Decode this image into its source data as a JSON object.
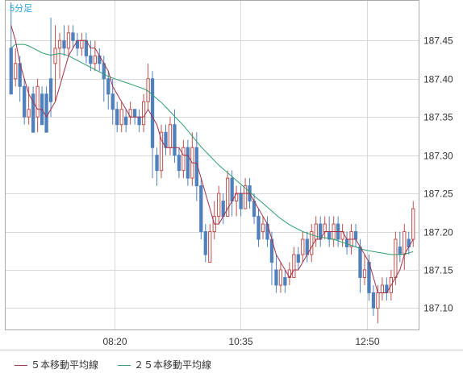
{
  "chart_data": {
    "type": "candlestick",
    "title": "5分足",
    "x_tick_labels": [
      "08:20",
      "10:35",
      "12:50"
    ],
    "y_tick_labels": [
      "187.45",
      "187.40",
      "187.35",
      "187.30",
      "187.25",
      "187.20",
      "187.15",
      "187.10"
    ],
    "ylim": [
      187.072,
      187.502
    ],
    "grid": true,
    "legend_position": "bottom-left",
    "colors": {
      "up": "#c0504d",
      "down": "#4f81bd",
      "ma5": "#a0324b",
      "ma25": "#2e9e6e",
      "title": "#29a3d6",
      "grid": "#d9d9d9"
    },
    "legend": [
      {
        "name": "５本移動平均線",
        "color": "#a0324b"
      },
      {
        "name": "２５本移動平均線",
        "color": "#2e9e6e"
      }
    ],
    "candles": [
      [
        187.44,
        187.38,
        187.5,
        187.38
      ],
      [
        187.4,
        187.42,
        187.44,
        187.39
      ],
      [
        187.42,
        187.39,
        187.43,
        187.37
      ],
      [
        187.39,
        187.35,
        187.4,
        187.34
      ],
      [
        187.35,
        187.36,
        187.39,
        187.34
      ],
      [
        187.38,
        187.33,
        187.39,
        187.33
      ],
      [
        187.35,
        187.39,
        187.4,
        187.33
      ],
      [
        187.38,
        187.34,
        187.39,
        187.34
      ],
      [
        187.38,
        187.33,
        187.39,
        187.33
      ],
      [
        187.4,
        187.37,
        187.48,
        187.35
      ],
      [
        187.42,
        187.44,
        187.47,
        187.37
      ],
      [
        187.44,
        187.45,
        187.46,
        187.4
      ],
      [
        187.45,
        187.44,
        187.47,
        187.43
      ],
      [
        187.44,
        187.46,
        187.47,
        187.43
      ],
      [
        187.46,
        187.45,
        187.47,
        187.44
      ],
      [
        187.45,
        187.44,
        187.46,
        187.43
      ],
      [
        187.44,
        187.45,
        187.46,
        187.43
      ],
      [
        187.45,
        187.43,
        187.46,
        187.42
      ],
      [
        187.43,
        187.42,
        187.45,
        187.41
      ],
      [
        187.42,
        187.43,
        187.45,
        187.41
      ],
      [
        187.43,
        187.42,
        187.44,
        187.41
      ],
      [
        187.42,
        187.4,
        187.43,
        187.37
      ],
      [
        187.4,
        187.38,
        187.41,
        187.36
      ],
      [
        187.38,
        187.36,
        187.4,
        187.34
      ],
      [
        187.36,
        187.34,
        187.37,
        187.33
      ],
      [
        187.34,
        187.36,
        187.37,
        187.33
      ],
      [
        187.35,
        187.34,
        187.36,
        187.33
      ],
      [
        187.35,
        187.36,
        187.37,
        187.34
      ],
      [
        187.36,
        187.35,
        187.36,
        187.34
      ],
      [
        187.35,
        187.34,
        187.36,
        187.33
      ],
      [
        187.34,
        187.37,
        187.38,
        187.33
      ],
      [
        187.37,
        187.4,
        187.42,
        187.36
      ],
      [
        187.4,
        187.31,
        187.41,
        187.27
      ],
      [
        187.3,
        187.28,
        187.31,
        187.26
      ],
      [
        187.28,
        187.33,
        187.34,
        187.27
      ],
      [
        187.33,
        187.31,
        187.34,
        187.3
      ],
      [
        187.31,
        187.34,
        187.35,
        187.3
      ],
      [
        187.34,
        187.3,
        187.36,
        187.29
      ],
      [
        187.3,
        187.28,
        187.31,
        187.27
      ],
      [
        187.28,
        187.31,
        187.32,
        187.27
      ],
      [
        187.31,
        187.27,
        187.32,
        187.26
      ],
      [
        187.27,
        187.31,
        187.33,
        187.26
      ],
      [
        187.31,
        187.26,
        187.33,
        187.24
      ],
      [
        187.26,
        187.2,
        187.27,
        187.19
      ],
      [
        187.2,
        187.17,
        187.21,
        187.16
      ],
      [
        187.16,
        187.2,
        187.21,
        187.16
      ],
      [
        187.2,
        187.22,
        187.24,
        187.19
      ],
      [
        187.22,
        187.25,
        187.26,
        187.21
      ],
      [
        187.24,
        187.22,
        187.25,
        187.21
      ],
      [
        187.22,
        187.27,
        187.28,
        187.22
      ],
      [
        187.27,
        187.24,
        187.28,
        187.22
      ],
      [
        187.24,
        187.25,
        187.26,
        187.22
      ],
      [
        187.25,
        187.23,
        187.26,
        187.22
      ],
      [
        187.23,
        187.26,
        187.27,
        187.23
      ],
      [
        187.26,
        187.24,
        187.27,
        187.23
      ],
      [
        187.24,
        187.22,
        187.25,
        187.21
      ],
      [
        187.22,
        187.19,
        187.23,
        187.18
      ],
      [
        187.2,
        187.21,
        187.22,
        187.19
      ],
      [
        187.21,
        187.19,
        187.22,
        187.18
      ],
      [
        187.19,
        187.16,
        187.2,
        187.13
      ],
      [
        187.15,
        187.13,
        187.17,
        187.12
      ],
      [
        187.13,
        187.15,
        187.16,
        187.12
      ],
      [
        187.14,
        187.13,
        187.15,
        187.12
      ],
      [
        187.14,
        187.15,
        187.16,
        187.13
      ],
      [
        187.14,
        187.17,
        187.18,
        187.14
      ],
      [
        187.17,
        187.16,
        187.18,
        187.15
      ],
      [
        187.17,
        187.19,
        187.2,
        187.16
      ],
      [
        187.19,
        187.17,
        187.2,
        187.16
      ],
      [
        187.17,
        187.2,
        187.21,
        187.16
      ],
      [
        187.19,
        187.21,
        187.22,
        187.18
      ],
      [
        187.21,
        187.19,
        187.22,
        187.18
      ],
      [
        187.2,
        187.21,
        187.22,
        187.19
      ],
      [
        187.2,
        187.19,
        187.22,
        187.18
      ],
      [
        187.19,
        187.21,
        187.22,
        187.18
      ],
      [
        187.21,
        187.19,
        187.22,
        187.18
      ],
      [
        187.19,
        187.2,
        187.21,
        187.18
      ],
      [
        187.19,
        187.18,
        187.2,
        187.17
      ],
      [
        187.18,
        187.2,
        187.21,
        187.17
      ],
      [
        187.2,
        187.19,
        187.21,
        187.18
      ],
      [
        187.18,
        187.14,
        187.19,
        187.12
      ],
      [
        187.14,
        187.15,
        187.17,
        187.13
      ],
      [
        187.16,
        187.12,
        187.17,
        187.11
      ],
      [
        187.12,
        187.1,
        187.13,
        187.09
      ],
      [
        187.1,
        187.12,
        187.13,
        187.08
      ],
      [
        187.12,
        187.13,
        187.14,
        187.11
      ],
      [
        187.13,
        187.12,
        187.14,
        187.11
      ],
      [
        187.12,
        187.14,
        187.15,
        187.11
      ],
      [
        187.14,
        187.19,
        187.2,
        187.13
      ],
      [
        187.18,
        187.17,
        187.2,
        187.16
      ],
      [
        187.17,
        187.2,
        187.21,
        187.15
      ],
      [
        187.19,
        187.18,
        187.2,
        187.17
      ],
      [
        187.19,
        187.23,
        187.24,
        187.18
      ]
    ],
    "ma5": [
      187.47,
      187.45,
      187.42,
      187.4,
      187.38,
      187.37,
      187.36,
      187.36,
      187.35,
      187.36,
      187.37,
      187.39,
      187.41,
      187.43,
      187.44,
      187.45,
      187.45,
      187.45,
      187.44,
      187.44,
      187.43,
      187.42,
      187.41,
      187.39,
      187.38,
      187.37,
      187.36,
      187.35,
      187.35,
      187.35,
      187.35,
      187.36,
      187.35,
      187.34,
      187.32,
      187.31,
      187.31,
      187.31,
      187.31,
      187.3,
      187.3,
      187.29,
      187.29,
      187.27,
      187.25,
      187.23,
      187.21,
      187.21,
      187.22,
      187.23,
      187.24,
      187.25,
      187.25,
      187.25,
      187.25,
      187.24,
      187.23,
      187.22,
      187.21,
      187.19,
      187.17,
      187.16,
      187.15,
      187.14,
      187.15,
      187.15,
      187.16,
      187.17,
      187.18,
      187.19,
      187.19,
      187.2,
      187.2,
      187.2,
      187.2,
      187.2,
      187.19,
      187.19,
      187.19,
      187.18,
      187.17,
      187.16,
      187.14,
      187.12,
      187.12,
      187.12,
      187.13,
      187.14,
      187.15,
      187.17,
      187.18,
      187.19
    ],
    "ma25": [
      187.44,
      187.445,
      187.445,
      187.445,
      187.443,
      187.44,
      187.437,
      187.434,
      187.432,
      187.431,
      187.432,
      187.433,
      187.432,
      187.43,
      187.427,
      187.424,
      187.421,
      187.418,
      187.415,
      187.412,
      187.409,
      187.406,
      187.403,
      187.401,
      187.399,
      187.397,
      187.395,
      187.393,
      187.391,
      187.389,
      187.387,
      187.384,
      187.379,
      187.374,
      187.369,
      187.363,
      187.357,
      187.351,
      187.345,
      187.339,
      187.332,
      187.325,
      187.318,
      187.311,
      187.305,
      187.299,
      187.293,
      187.287,
      187.282,
      187.277,
      187.272,
      187.267,
      187.262,
      187.257,
      187.252,
      187.247,
      187.242,
      187.237,
      187.232,
      187.227,
      187.222,
      187.217,
      187.213,
      187.209,
      187.206,
      187.203,
      187.2,
      187.198,
      187.196,
      187.194,
      187.193,
      187.192,
      187.191,
      187.19,
      187.188,
      187.186,
      187.184,
      187.182,
      187.18,
      187.178,
      187.176,
      187.175,
      187.174,
      187.173,
      187.172,
      187.171,
      187.17,
      187.17,
      187.17,
      187.171,
      187.172,
      187.174
    ]
  }
}
